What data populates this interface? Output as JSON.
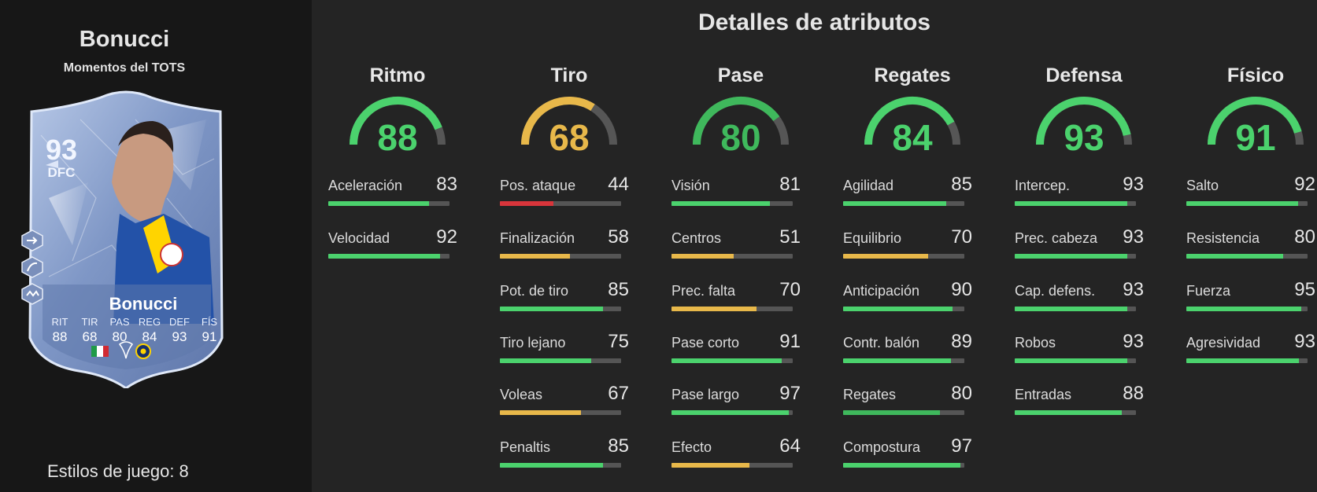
{
  "player": {
    "name": "Bonucci",
    "subtitle": "Momentos del TOTS"
  },
  "card": {
    "rating": "93",
    "position": "DFC",
    "name": "Bonucci",
    "stats": [
      {
        "label": "RIT",
        "value": "88"
      },
      {
        "label": "TIR",
        "value": "68"
      },
      {
        "label": "PAS",
        "value": "80"
      },
      {
        "label": "REG",
        "value": "84"
      },
      {
        "label": "DEF",
        "value": "93"
      },
      {
        "label": "FÍS",
        "value": "91"
      }
    ],
    "side_icons": [
      "playstyle-arrow-icon",
      "playstyle-slide-icon",
      "playstyle-anticipate-icon"
    ],
    "badges": [
      "italy-flag-icon",
      "trendyol-league-logo",
      "fenerbahce-crest"
    ]
  },
  "styles_label": "Estilos de juego: 8",
  "title": "Detalles de atributos",
  "colors": {
    "green": "#4bd26d",
    "yellow": "#e8b84a",
    "red": "#d8353b",
    "dim_green": "#3fb85c",
    "gauge_track": "#565656"
  },
  "categories": [
    {
      "name": "Ritmo",
      "value": 88,
      "color": "green",
      "items": [
        {
          "name": "Aceleración",
          "value": 83,
          "color": "green"
        },
        {
          "name": "Velocidad",
          "value": 92,
          "color": "green"
        }
      ]
    },
    {
      "name": "Tiro",
      "value": 68,
      "color": "yellow",
      "items": [
        {
          "name": "Pos. ataque",
          "value": 44,
          "color": "red"
        },
        {
          "name": "Finalización",
          "value": 58,
          "color": "yellow"
        },
        {
          "name": "Pot. de tiro",
          "value": 85,
          "color": "green"
        },
        {
          "name": "Tiro lejano",
          "value": 75,
          "color": "green"
        },
        {
          "name": "Voleas",
          "value": 67,
          "color": "yellow"
        },
        {
          "name": "Penaltis",
          "value": 85,
          "color": "green"
        }
      ]
    },
    {
      "name": "Pase",
      "value": 80,
      "color": "dim_green",
      "items": [
        {
          "name": "Visión",
          "value": 81,
          "color": "green"
        },
        {
          "name": "Centros",
          "value": 51,
          "color": "yellow"
        },
        {
          "name": "Prec. falta",
          "value": 70,
          "color": "yellow"
        },
        {
          "name": "Pase corto",
          "value": 91,
          "color": "green"
        },
        {
          "name": "Pase largo",
          "value": 97,
          "color": "green"
        },
        {
          "name": "Efecto",
          "value": 64,
          "color": "yellow"
        }
      ]
    },
    {
      "name": "Regates",
      "value": 84,
      "color": "green",
      "items": [
        {
          "name": "Agilidad",
          "value": 85,
          "color": "green"
        },
        {
          "name": "Equilibrio",
          "value": 70,
          "color": "yellow"
        },
        {
          "name": "Anticipación",
          "value": 90,
          "color": "green"
        },
        {
          "name": "Contr. balón",
          "value": 89,
          "color": "green"
        },
        {
          "name": "Regates",
          "value": 80,
          "color": "dim_green"
        },
        {
          "name": "Compostura",
          "value": 97,
          "color": "green"
        }
      ]
    },
    {
      "name": "Defensa",
      "value": 93,
      "color": "green",
      "items": [
        {
          "name": "Intercep.",
          "value": 93,
          "color": "green"
        },
        {
          "name": "Prec. cabeza",
          "value": 93,
          "color": "green"
        },
        {
          "name": "Cap. defens.",
          "value": 93,
          "color": "green"
        },
        {
          "name": "Robos",
          "value": 93,
          "color": "green"
        },
        {
          "name": "Entradas",
          "value": 88,
          "color": "green"
        }
      ]
    },
    {
      "name": "Físico",
      "value": 91,
      "color": "green",
      "items": [
        {
          "name": "Salto",
          "value": 92,
          "color": "green"
        },
        {
          "name": "Resistencia",
          "value": 80,
          "color": "green"
        },
        {
          "name": "Fuerza",
          "value": 95,
          "color": "green"
        },
        {
          "name": "Agresividad",
          "value": 93,
          "color": "green"
        }
      ]
    }
  ]
}
